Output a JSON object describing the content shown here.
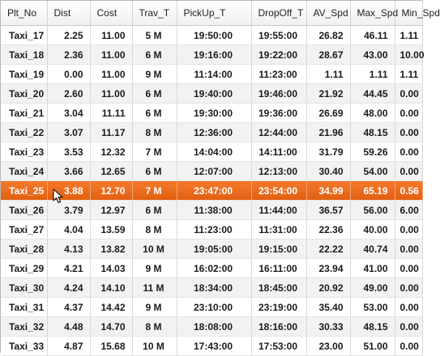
{
  "columns": [
    "Plt_No",
    "Dist",
    "Cost",
    "Trav_T",
    "PickUp_T",
    "DropOff_T",
    "AV_Spd",
    "Max_Spd",
    "Min_Spd"
  ],
  "rows": [
    [
      "Taxi_17",
      "2.25",
      "11.00",
      "5 M",
      "19:50:00",
      "19:55:00",
      "26.82",
      "46.11",
      "1.11"
    ],
    [
      "Taxi_18",
      "2.36",
      "11.00",
      "6 M",
      "19:16:00",
      "19:22:00",
      "28.67",
      "43.00",
      "10.00"
    ],
    [
      "Taxi_19",
      "0.00",
      "11.00",
      "9 M",
      "11:14:00",
      "11:23:00",
      "1.11",
      "1.11",
      "1.11"
    ],
    [
      "Taxi_20",
      "2.60",
      "11.00",
      "6 M",
      "19:40:00",
      "19:46:00",
      "21.92",
      "44.45",
      "0.00"
    ],
    [
      "Taxi_21",
      "3.04",
      "11.11",
      "6 M",
      "19:30:00",
      "19:36:00",
      "26.69",
      "48.00",
      "0.00"
    ],
    [
      "Taxi_22",
      "3.07",
      "11.17",
      "8 M",
      "12:36:00",
      "12:44:00",
      "21.96",
      "48.15",
      "0.00"
    ],
    [
      "Taxi_23",
      "3.53",
      "12.32",
      "7 M",
      "14:04:00",
      "14:11:00",
      "31.79",
      "59.26",
      "0.00"
    ],
    [
      "Taxi_24",
      "3.66",
      "12.65",
      "6 M",
      "12:07:00",
      "12:13:00",
      "30.40",
      "54.00",
      "0.00"
    ],
    [
      "Taxi_25",
      "3.88",
      "12.70",
      "7 M",
      "23:47:00",
      "23:54:00",
      "34.99",
      "65.19",
      "0.56"
    ],
    [
      "Taxi_26",
      "3.79",
      "12.97",
      "6 M",
      "11:38:00",
      "11:44:00",
      "36.57",
      "56.00",
      "6.00"
    ],
    [
      "Taxi_27",
      "4.04",
      "13.59",
      "8 M",
      "11:23:00",
      "11:31:00",
      "22.36",
      "40.00",
      "0.00"
    ],
    [
      "Taxi_28",
      "4.13",
      "13.82",
      "10 M",
      "19:05:00",
      "19:15:00",
      "22.22",
      "40.74",
      "0.00"
    ],
    [
      "Taxi_29",
      "4.21",
      "14.03",
      "9 M",
      "16:02:00",
      "16:11:00",
      "23.94",
      "41.00",
      "0.00"
    ],
    [
      "Taxi_30",
      "4.24",
      "14.10",
      "11 M",
      "18:34:00",
      "18:45:00",
      "20.92",
      "49.00",
      "0.00"
    ],
    [
      "Taxi_31",
      "4.37",
      "14.42",
      "9 M",
      "23:10:00",
      "23:19:00",
      "35.40",
      "53.00",
      "0.00"
    ],
    [
      "Taxi_32",
      "4.48",
      "14.70",
      "8 M",
      "18:08:00",
      "18:16:00",
      "30.33",
      "48.15",
      "0.00"
    ],
    [
      "Taxi_33",
      "4.87",
      "15.68",
      "10 M",
      "17:43:00",
      "17:53:00",
      "23.00",
      "51.00",
      "0.00"
    ]
  ],
  "selected_row_index": 8,
  "colors": {
    "selection": "#ee6a1c",
    "header_bg": "#f4f4f4",
    "alt_row": "#f2f2f2"
  },
  "icons": {
    "pointer": "arrow-cursor-icon"
  }
}
